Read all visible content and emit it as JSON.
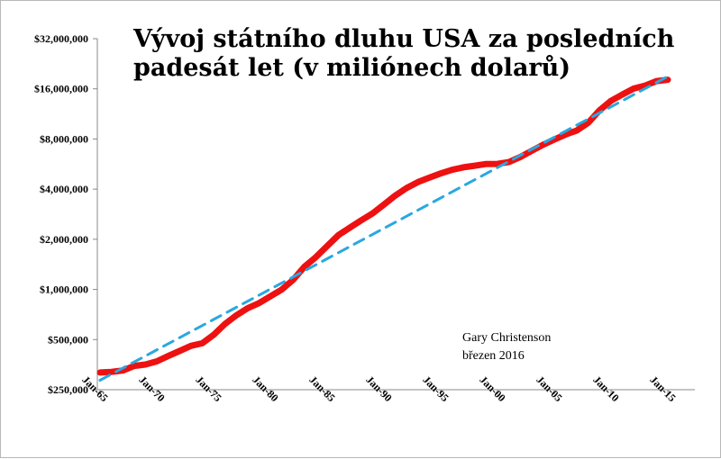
{
  "chart_data": {
    "type": "line",
    "title_lines": [
      "Vývoj státního dluhu USA za posledních",
      "padesát let (v miliónech dolarů)"
    ],
    "xlabel": "",
    "ylabel": "",
    "y_scale": "log2",
    "ylim": [
      250000,
      32000000
    ],
    "xlim": [
      1965,
      2015
    ],
    "y_ticks": [
      250000,
      500000,
      1000000,
      2000000,
      4000000,
      8000000,
      16000000,
      32000000
    ],
    "y_tick_labels": [
      "$250,000",
      "$500,000",
      "$1,000,000",
      "$2,000,000",
      "$4,000,000",
      "$8,000,000",
      "$16,000,000",
      "$32,000,000"
    ],
    "x_ticks": [
      1965,
      1970,
      1975,
      1980,
      1985,
      1990,
      1995,
      2000,
      2005,
      2010,
      2015
    ],
    "x_tick_labels": [
      "Jan-65",
      "Jan-70",
      "Jan-75",
      "Jan-80",
      "Jan-85",
      "Jan-90",
      "Jan-95",
      "Jan-00",
      "Jan-05",
      "Jan-10",
      "Jan-15"
    ],
    "annotation": [
      "Gary Christenson",
      "březen 2016"
    ],
    "series": [
      {
        "style": "solid",
        "color": "#ee1111",
        "x": [
          1965,
          1966,
          1967,
          1968,
          1969,
          1970,
          1971,
          1972,
          1973,
          1974,
          1975,
          1976,
          1977,
          1978,
          1979,
          1980,
          1981,
          1982,
          1983,
          1984,
          1985,
          1986,
          1987,
          1988,
          1989,
          1990,
          1991,
          1992,
          1993,
          1994,
          1995,
          1996,
          1997,
          1998,
          1999,
          2000,
          2001,
          2002,
          2003,
          2004,
          2005,
          2006,
          2007,
          2008,
          2009,
          2010,
          2011,
          2012,
          2013,
          2014,
          2015
        ],
        "y": [
          317000,
          320000,
          326000,
          347000,
          354000,
          370000,
          398000,
          427000,
          458000,
          475000,
          533000,
          620000,
          699000,
          772000,
          827000,
          908000,
          998000,
          1140000,
          1370000,
          1560000,
          1820000,
          2120000,
          2350000,
          2600000,
          2860000,
          3230000,
          3660000,
          4060000,
          4410000,
          4690000,
          4970000,
          5220000,
          5410000,
          5530000,
          5660000,
          5670000,
          5810000,
          6230000,
          6780000,
          7380000,
          7930000,
          8510000,
          9010000,
          10020000,
          11910000,
          13560000,
          14790000,
          16070000,
          16740000,
          17820000,
          18150000
        ]
      },
      {
        "style": "dashed",
        "color": "#29a8e0",
        "x": [
          1965,
          2015
        ],
        "y": [
          285000,
          19000000
        ]
      }
    ]
  }
}
